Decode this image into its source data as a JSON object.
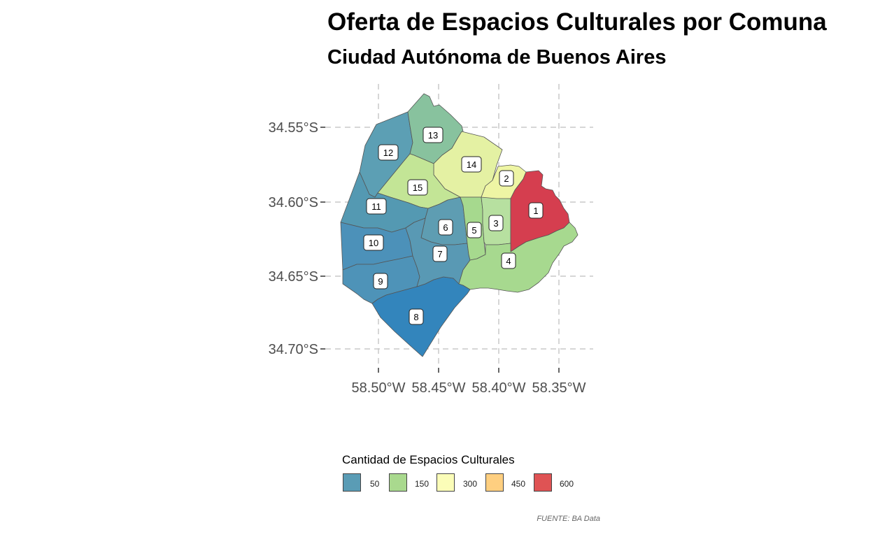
{
  "title": "Oferta de Espacios Culturales por Comuna",
  "subtitle": "Ciudad Autónoma de Buenos Aires",
  "axes": {
    "x_ticks": [
      "58.50°W",
      "58.45°W",
      "58.40°W",
      "58.35°W"
    ],
    "y_ticks": [
      "34.55°S",
      "34.60°S",
      "34.65°S",
      "34.70°S"
    ]
  },
  "legend": {
    "title": "Cantidad de Espacios Culturales",
    "items": [
      {
        "label": "50",
        "color": "#5a9cb5"
      },
      {
        "label": "150",
        "color": "#a9d98e"
      },
      {
        "label": "300",
        "color": "#fbfdb8"
      },
      {
        "label": "450",
        "color": "#fecf80"
      },
      {
        "label": "600",
        "color": "#df5354"
      }
    ]
  },
  "comunas": [
    {
      "id": "1",
      "color": "#d53e4f"
    },
    {
      "id": "2",
      "color": "#eef5a4"
    },
    {
      "id": "3",
      "color": "#b7e0a0"
    },
    {
      "id": "4",
      "color": "#a7d98f"
    },
    {
      "id": "5",
      "color": "#a6d98e"
    },
    {
      "id": "6",
      "color": "#5e9db2"
    },
    {
      "id": "7",
      "color": "#5999b4"
    },
    {
      "id": "8",
      "color": "#3385bc"
    },
    {
      "id": "9",
      "color": "#4e93b8"
    },
    {
      "id": "10",
      "color": "#4c91b9"
    },
    {
      "id": "11",
      "color": "#5499b2"
    },
    {
      "id": "12",
      "color": "#5c9fb4"
    },
    {
      "id": "13",
      "color": "#88c29e"
    },
    {
      "id": "14",
      "color": "#e4f1a3"
    },
    {
      "id": "15",
      "color": "#c3e596"
    }
  ],
  "source": "FUENTE: BA Data"
}
